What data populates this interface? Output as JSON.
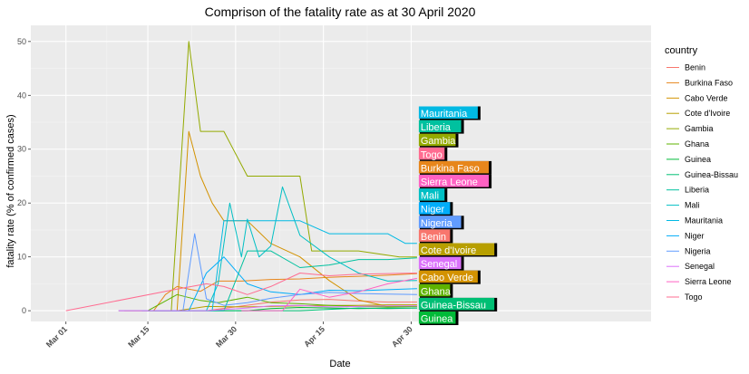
{
  "chart_data": {
    "type": "line",
    "title": "Comprison of the fatality rate as at 30 April 2020",
    "xlabel": "Date",
    "ylabel": "fatality rate (% of confirmed cases)",
    "x_ticks": [
      {
        "day": 0,
        "label": "Mar 01"
      },
      {
        "day": 14,
        "label": "Mar 15"
      },
      {
        "day": 29,
        "label": "Mar 30"
      },
      {
        "day": 44,
        "label": "Apr 15"
      },
      {
        "day": 59,
        "label": "Apr 30"
      }
    ],
    "y_ticks": [
      0,
      10,
      20,
      30,
      40,
      50
    ],
    "xlim": [
      "2020-02-24",
      "2020-06-09"
    ],
    "ylim": [
      -2,
      53
    ],
    "legend_title": "country",
    "legend_position": "right",
    "grid": true,
    "series": [
      {
        "name": "Benin",
        "color": "#F8766D",
        "x": [
          "2020-03-16",
          "2020-03-20",
          "2020-03-25",
          "2020-04-05",
          "2020-04-10",
          "2020-04-15",
          "2020-04-20",
          "2020-04-25",
          "2020-04-30"
        ],
        "y": [
          0,
          0,
          0,
          1.6,
          2.0,
          2.1,
          1.8,
          1.6,
          1.6
        ]
      },
      {
        "name": "Burkina Faso",
        "color": "#E7861B",
        "x": [
          "2020-03-10",
          "2020-03-12",
          "2020-03-14",
          "2020-03-16",
          "2020-03-18",
          "2020-03-20",
          "2020-03-22",
          "2020-03-24",
          "2020-03-27",
          "2020-03-31",
          "2020-04-05",
          "2020-04-10",
          "2020-04-15",
          "2020-04-20",
          "2020-04-25",
          "2020-04-30"
        ],
        "y": [
          0,
          0,
          0,
          0,
          3.0,
          4.5,
          4.0,
          3.6,
          5.5,
          5.5,
          5.8,
          5.9,
          6.2,
          6.4,
          6.6,
          6.9
        ]
      },
      {
        "name": "Cabo Verde",
        "color": "#D39200",
        "x": [
          "2020-03-20",
          "2020-03-22",
          "2020-03-24",
          "2020-03-26",
          "2020-03-28",
          "2020-04-01",
          "2020-04-05",
          "2020-04-10",
          "2020-04-15",
          "2020-04-20",
          "2020-04-25",
          "2020-04-30"
        ],
        "y": [
          0,
          33.3,
          25,
          20,
          16.7,
          16.7,
          12.5,
          10,
          5.6,
          2.0,
          0.8,
          0.8
        ]
      },
      {
        "name": "Cote d'Ivoire",
        "color": "#B79F00",
        "x": [
          "2020-03-11",
          "2020-03-20",
          "2020-03-25",
          "2020-04-01",
          "2020-04-05",
          "2020-04-10",
          "2020-04-15",
          "2020-04-20",
          "2020-04-25",
          "2020-04-30"
        ],
        "y": [
          0,
          0,
          0.8,
          0.7,
          0.8,
          0.9,
          1.0,
          1.0,
          1.1,
          1.1
        ]
      },
      {
        "name": "Gambia",
        "color": "#93AA00",
        "x": [
          "2020-03-17",
          "2020-03-19",
          "2020-03-22",
          "2020-03-24",
          "2020-03-25",
          "2020-03-28",
          "2020-04-01",
          "2020-04-06",
          "2020-04-10",
          "2020-04-12",
          "2020-04-20",
          "2020-04-27",
          "2020-04-30"
        ],
        "y": [
          0,
          0,
          50,
          33.3,
          33.3,
          33.3,
          25,
          25,
          25,
          11.1,
          11.1,
          10,
          10
        ]
      },
      {
        "name": "Ghana",
        "color": "#5EB300",
        "x": [
          "2020-03-15",
          "2020-03-20",
          "2020-03-24",
          "2020-03-27",
          "2020-04-01",
          "2020-04-05",
          "2020-04-10",
          "2020-04-15",
          "2020-04-20",
          "2020-04-25",
          "2020-04-30"
        ],
        "y": [
          0,
          3.0,
          1.9,
          1.5,
          2.5,
          1.5,
          1.3,
          1.0,
          0.8,
          0.7,
          0.8
        ]
      },
      {
        "name": "Guinea",
        "color": "#00BA38",
        "x": [
          "2020-03-15",
          "2020-03-25",
          "2020-04-01",
          "2020-04-05",
          "2020-04-10",
          "2020-04-15",
          "2020-04-20",
          "2020-04-25",
          "2020-04-30"
        ],
        "y": [
          0,
          0,
          0,
          0.4,
          0.6,
          0.5,
          0.4,
          0.5,
          0.5
        ]
      },
      {
        "name": "Guinea-Bissau",
        "color": "#00BF74",
        "x": [
          "2020-03-25",
          "2020-04-10",
          "2020-04-20",
          "2020-04-25",
          "2020-04-30"
        ],
        "y": [
          0,
          0,
          0.5,
          0.4,
          0.5
        ]
      },
      {
        "name": "Liberia",
        "color": "#00C19F",
        "x": [
          "2020-03-16",
          "2020-03-28",
          "2020-04-01",
          "2020-04-05",
          "2020-04-10",
          "2020-04-15",
          "2020-04-20",
          "2020-04-25",
          "2020-04-30"
        ],
        "y": [
          0,
          0,
          11.1,
          11.1,
          8.0,
          8.5,
          9.5,
          9.5,
          9.8
        ]
      },
      {
        "name": "Mali",
        "color": "#00BFC4",
        "x": [
          "2020-03-25",
          "2020-03-27",
          "2020-03-29",
          "2020-03-31",
          "2020-04-01",
          "2020-04-03",
          "2020-04-05",
          "2020-04-07",
          "2020-04-10",
          "2020-04-15",
          "2020-04-20",
          "2020-04-25",
          "2020-04-30"
        ],
        "y": [
          0,
          5,
          20,
          10,
          17,
          10,
          12,
          23,
          14,
          10,
          7,
          5.5,
          5.6
        ]
      },
      {
        "name": "Mauritania",
        "color": "#00B9E3",
        "x": [
          "2020-03-14",
          "2020-03-26",
          "2020-03-28",
          "2020-03-31",
          "2020-04-05",
          "2020-04-10",
          "2020-04-15",
          "2020-04-20",
          "2020-04-25",
          "2020-04-28",
          "2020-04-30"
        ],
        "y": [
          0,
          0,
          16.7,
          16.7,
          16.7,
          16.7,
          14.3,
          14.3,
          14.3,
          12.5,
          12.5
        ]
      },
      {
        "name": "Niger",
        "color": "#00ADFA",
        "x": [
          "2020-03-19",
          "2020-03-22",
          "2020-03-25",
          "2020-03-28",
          "2020-04-01",
          "2020-04-05",
          "2020-04-10",
          "2020-04-15",
          "2020-04-20",
          "2020-04-25",
          "2020-04-30"
        ],
        "y": [
          0,
          0,
          7.0,
          10.0,
          5.0,
          3.5,
          3.0,
          3.8,
          3.7,
          3.9,
          4.1
        ]
      },
      {
        "name": "Nigeria",
        "color": "#619CFF",
        "x": [
          "2020-03-10",
          "2020-03-18",
          "2020-03-21",
          "2020-03-23",
          "2020-03-25",
          "2020-03-28",
          "2020-04-01",
          "2020-04-05",
          "2020-04-10",
          "2020-04-15",
          "2020-04-20",
          "2020-04-25",
          "2020-04-30"
        ],
        "y": [
          0,
          0,
          0,
          14.3,
          2.2,
          1.0,
          1.5,
          2.3,
          3.0,
          3.4,
          3.2,
          3.1,
          3.0
        ]
      },
      {
        "name": "Senegal",
        "color": "#DB72FB",
        "x": [
          "2020-03-10",
          "2020-03-25",
          "2020-04-01",
          "2020-04-05",
          "2020-04-10",
          "2020-04-15",
          "2020-04-20",
          "2020-04-25",
          "2020-04-30"
        ],
        "y": [
          0,
          0,
          0.5,
          0.9,
          1.0,
          0.7,
          0.8,
          0.9,
          0.9
        ]
      },
      {
        "name": "Sierra Leone",
        "color": "#FF61C3",
        "x": [
          "2020-03-31",
          "2020-04-07",
          "2020-04-10",
          "2020-04-15",
          "2020-04-20",
          "2020-04-25",
          "2020-04-30"
        ],
        "y": [
          0,
          0,
          4.0,
          2.5,
          3.5,
          5.0,
          6.0
        ]
      },
      {
        "name": "Togo",
        "color": "#FF6C91",
        "x": [
          "2020-03-01",
          "2020-03-20",
          "2020-03-25",
          "2020-03-28",
          "2020-04-01",
          "2020-04-05",
          "2020-04-10",
          "2020-04-15",
          "2020-04-20",
          "2020-04-25",
          "2020-04-30"
        ],
        "y": [
          0,
          4.0,
          5.0,
          4.5,
          3.0,
          4.5,
          7.0,
          6.5,
          6.8,
          6.9,
          7.0
        ]
      }
    ],
    "end_labels": [
      {
        "name": "Mauritania",
        "color": "#00B9E3"
      },
      {
        "name": "Liberia",
        "color": "#00C19F"
      },
      {
        "name": "Gambia",
        "color": "#93AA00"
      },
      {
        "name": "Togo",
        "color": "#FF6C91"
      },
      {
        "name": "Burkina Faso",
        "color": "#E7861B"
      },
      {
        "name": "Sierra Leone",
        "color": "#FF61C3"
      },
      {
        "name": "Mali",
        "color": "#00BFC4"
      },
      {
        "name": "Niger",
        "color": "#00ADFA"
      },
      {
        "name": "Nigeria",
        "color": "#619CFF"
      },
      {
        "name": "Benin",
        "color": "#F8766D"
      },
      {
        "name": "Cote d'Ivoire",
        "color": "#B79F00"
      },
      {
        "name": "Senegal",
        "color": "#DB72FB"
      },
      {
        "name": "Cabo Verde",
        "color": "#D39200"
      },
      {
        "name": "Ghana",
        "color": "#5EB300"
      },
      {
        "name": "Guinea-Bissau",
        "color": "#00BF74"
      },
      {
        "name": "Guinea",
        "color": "#00BA38"
      }
    ]
  }
}
